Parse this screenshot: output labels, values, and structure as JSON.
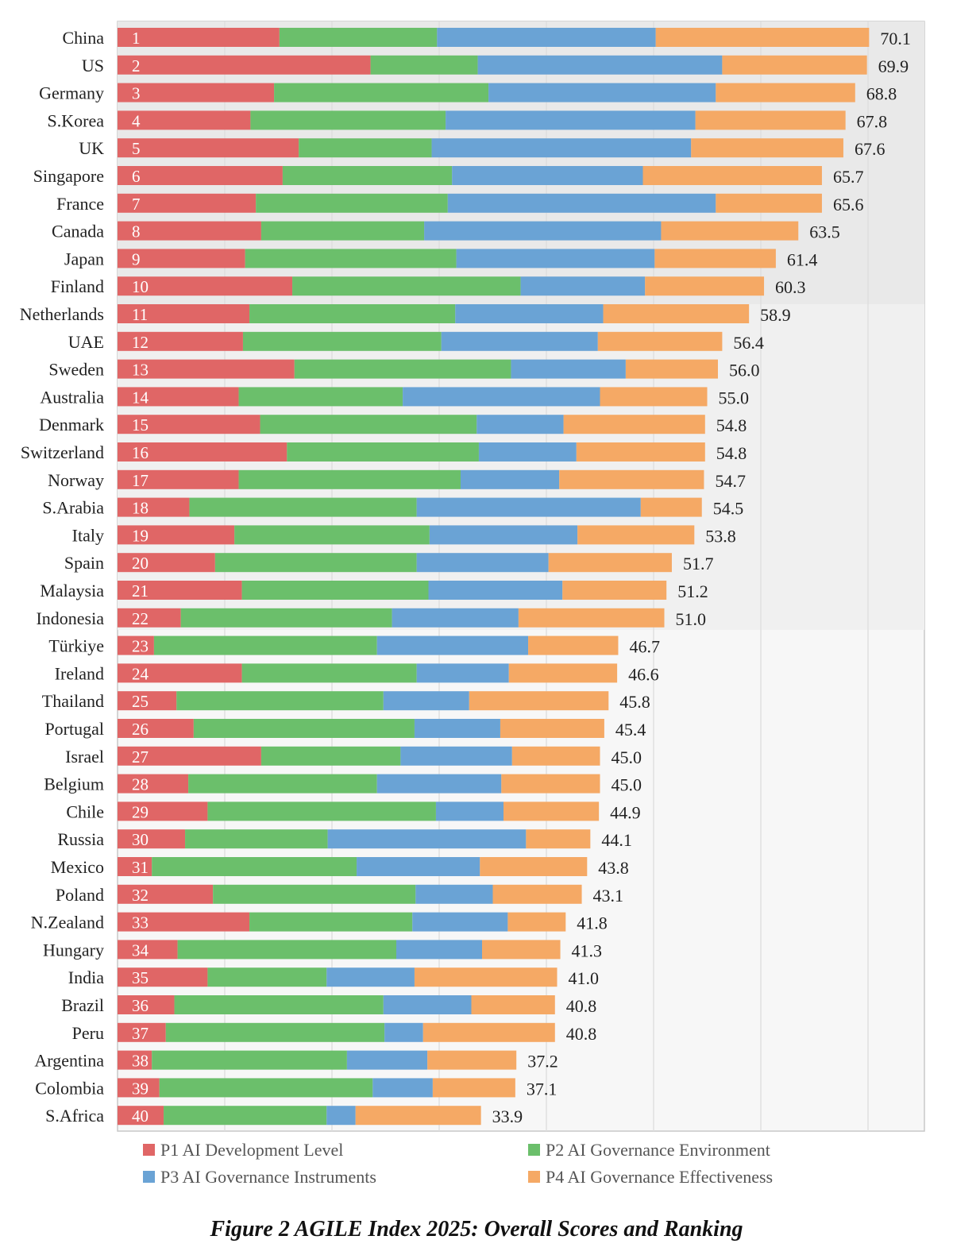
{
  "chart_data": {
    "type": "bar",
    "orientation": "horizontal",
    "stacked": true,
    "title": "Figure 2 AGILE Index 2025: Overall Scores and Ranking",
    "xlim": [
      0,
      80
    ],
    "grid": true,
    "series": [
      {
        "name": "P1 AI Development Level",
        "color": "#e06666"
      },
      {
        "name": "P2 AI Governance Environment",
        "color": "#6bbf6b"
      },
      {
        "name": "P3 AI Governance Instruments",
        "color": "#6aa3d5"
      },
      {
        "name": "P4 AI Governance Effectiveness",
        "color": "#f5a965"
      }
    ],
    "rows": [
      {
        "country": "China",
        "rank": "1",
        "total": "70.1",
        "values": [
          15.1,
          14.7,
          20.4,
          19.9
        ]
      },
      {
        "country": "US",
        "rank": "2",
        "total": "69.9",
        "values": [
          23.6,
          10.0,
          22.8,
          13.5
        ]
      },
      {
        "country": "Germany",
        "rank": "3",
        "total": "68.8",
        "values": [
          14.6,
          20.0,
          21.2,
          13.0
        ]
      },
      {
        "country": "S.Korea",
        "rank": "4",
        "total": "67.8",
        "values": [
          12.4,
          18.2,
          23.3,
          14.0
        ]
      },
      {
        "country": "UK",
        "rank": "5",
        "total": "67.6",
        "values": [
          16.9,
          12.4,
          24.2,
          14.2
        ]
      },
      {
        "country": "Singapore",
        "rank": "6",
        "total": "65.7",
        "values": [
          15.4,
          15.8,
          17.8,
          16.7
        ]
      },
      {
        "country": "France",
        "rank": "7",
        "total": "65.6",
        "values": [
          12.9,
          17.9,
          25.0,
          9.9
        ]
      },
      {
        "country": "Canada",
        "rank": "8",
        "total": "63.5",
        "values": [
          13.4,
          15.2,
          22.1,
          12.8
        ]
      },
      {
        "country": "Japan",
        "rank": "9",
        "total": "61.4",
        "values": [
          11.9,
          19.7,
          18.5,
          11.3
        ]
      },
      {
        "country": "Finland",
        "rank": "10",
        "total": "60.3",
        "values": [
          16.3,
          21.3,
          11.6,
          11.1
        ]
      },
      {
        "country": "Netherlands",
        "rank": "11",
        "total": "58.9",
        "values": [
          12.3,
          19.2,
          13.8,
          13.6
        ]
      },
      {
        "country": "UAE",
        "rank": "12",
        "total": "56.4",
        "values": [
          11.7,
          18.5,
          14.6,
          11.6
        ]
      },
      {
        "country": "Sweden",
        "rank": "13",
        "total": "56.0",
        "values": [
          16.5,
          20.2,
          10.7,
          8.6
        ]
      },
      {
        "country": "Australia",
        "rank": "14",
        "total": "55.0",
        "values": [
          11.3,
          15.3,
          18.4,
          10.0
        ]
      },
      {
        "country": "Denmark",
        "rank": "15",
        "total": "54.8",
        "values": [
          13.3,
          20.2,
          8.1,
          13.2
        ]
      },
      {
        "country": "Switzerland",
        "rank": "16",
        "total": "54.8",
        "values": [
          15.8,
          17.9,
          9.1,
          12.0
        ]
      },
      {
        "country": "Norway",
        "rank": "17",
        "total": "54.7",
        "values": [
          11.3,
          20.7,
          9.2,
          13.5
        ]
      },
      {
        "country": "S.Arabia",
        "rank": "18",
        "total": "54.5",
        "values": [
          6.7,
          21.2,
          20.9,
          5.7
        ]
      },
      {
        "country": "Italy",
        "rank": "19",
        "total": "53.8",
        "values": [
          10.9,
          18.2,
          13.8,
          10.9
        ]
      },
      {
        "country": "Spain",
        "rank": "20",
        "total": "51.7",
        "values": [
          9.1,
          18.8,
          12.3,
          11.5
        ]
      },
      {
        "country": "Malaysia",
        "rank": "21",
        "total": "51.2",
        "values": [
          11.6,
          17.4,
          12.5,
          9.7
        ]
      },
      {
        "country": "Indonesia",
        "rank": "22",
        "total": "51.0",
        "values": [
          5.9,
          19.7,
          11.8,
          13.6
        ]
      },
      {
        "country": "Türkiye",
        "rank": "23",
        "total": "46.7",
        "values": [
          3.4,
          20.8,
          14.1,
          8.4
        ]
      },
      {
        "country": "Ireland",
        "rank": "24",
        "total": "46.6",
        "values": [
          11.6,
          16.3,
          8.6,
          10.1
        ]
      },
      {
        "country": "Thailand",
        "rank": "25",
        "total": "45.8",
        "values": [
          5.5,
          19.3,
          8.0,
          13.0
        ]
      },
      {
        "country": "Portugal",
        "rank": "26",
        "total": "45.4",
        "values": [
          7.1,
          20.6,
          8.0,
          9.7
        ]
      },
      {
        "country": "Israel",
        "rank": "27",
        "total": "45.0",
        "values": [
          13.4,
          13.0,
          10.4,
          8.2
        ]
      },
      {
        "country": "Belgium",
        "rank": "28",
        "total": "45.0",
        "values": [
          6.6,
          17.6,
          11.6,
          9.2
        ]
      },
      {
        "country": "Chile",
        "rank": "29",
        "total": "44.9",
        "values": [
          8.4,
          21.3,
          6.3,
          8.9
        ]
      },
      {
        "country": "Russia",
        "rank": "30",
        "total": "44.1",
        "values": [
          6.3,
          13.3,
          18.5,
          6.0
        ]
      },
      {
        "country": "Mexico",
        "rank": "31",
        "total": "43.8",
        "values": [
          3.2,
          19.1,
          11.5,
          10.0
        ]
      },
      {
        "country": "Poland",
        "rank": "32",
        "total": "43.1",
        "values": [
          8.9,
          18.9,
          7.2,
          8.3
        ]
      },
      {
        "country": "N.Zealand",
        "rank": "33",
        "total": "41.8",
        "values": [
          12.3,
          15.2,
          8.9,
          5.4
        ]
      },
      {
        "country": "Hungary",
        "rank": "34",
        "total": "41.3",
        "values": [
          5.6,
          20.4,
          8.0,
          7.3
        ]
      },
      {
        "country": "India",
        "rank": "35",
        "total": "41.0",
        "values": [
          8.4,
          11.1,
          8.2,
          13.3
        ]
      },
      {
        "country": "Brazil",
        "rank": "36",
        "total": "40.8",
        "values": [
          5.3,
          19.5,
          8.2,
          7.8
        ]
      },
      {
        "country": "Peru",
        "rank": "37",
        "total": "40.8",
        "values": [
          4.5,
          20.4,
          3.6,
          12.3
        ]
      },
      {
        "country": "Argentina",
        "rank": "38",
        "total": "37.2",
        "values": [
          3.2,
          18.2,
          7.5,
          8.3
        ]
      },
      {
        "country": "Colombia",
        "rank": "39",
        "total": "37.1",
        "values": [
          3.9,
          19.9,
          5.6,
          7.7
        ]
      },
      {
        "country": "S.Africa",
        "rank": "40",
        "total": "33.9",
        "values": [
          4.3,
          15.2,
          2.7,
          11.7
        ]
      }
    ]
  }
}
